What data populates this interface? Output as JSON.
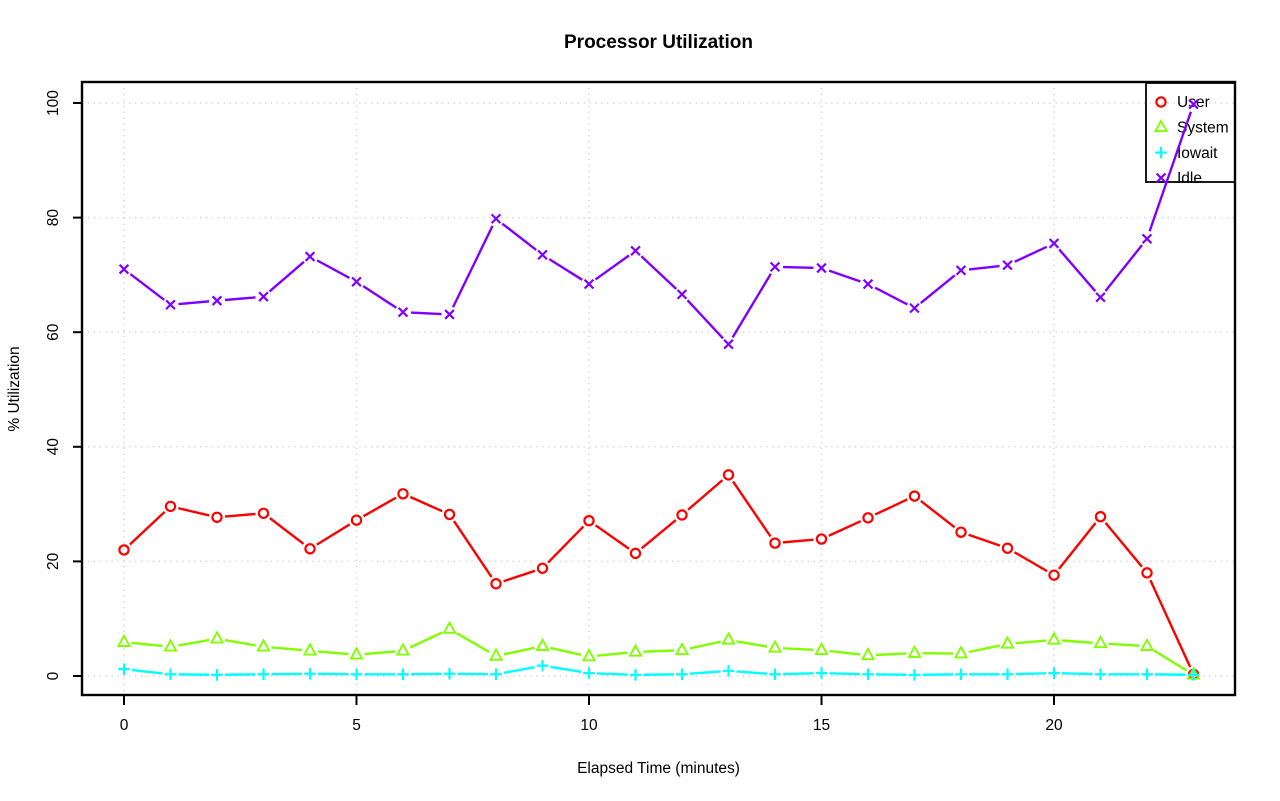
{
  "chart_data": {
    "type": "line",
    "title": "Processor Utilization",
    "xlabel": "Elapsed Time (minutes)",
    "ylabel": "% Utilization",
    "xlim": [
      0,
      23
    ],
    "ylim": [
      0,
      100
    ],
    "x_ticks": [
      0,
      5,
      10,
      15,
      20
    ],
    "y_ticks": [
      0,
      20,
      40,
      60,
      80,
      100
    ],
    "grid": true,
    "grid_style": "dotted",
    "grid_color": "#d4d4d4",
    "axis_color": "#000000",
    "legend_position": "top-right",
    "x": [
      0,
      1,
      2,
      3,
      4,
      5,
      6,
      7,
      8,
      9,
      10,
      11,
      12,
      13,
      14,
      15,
      16,
      17,
      18,
      19,
      20,
      21,
      22,
      23
    ],
    "series": [
      {
        "name": "User",
        "marker": "circle",
        "color": "#FF0000",
        "values": [
          22,
          29.6,
          27.7,
          28.4,
          22.2,
          27.2,
          31.8,
          28.2,
          16.1,
          18.8,
          27.1,
          21.4,
          28.1,
          35.1,
          23.2,
          23.9,
          27.6,
          31.4,
          25.1,
          22.3,
          17.6,
          27.8,
          18,
          0.3
        ]
      },
      {
        "name": "System",
        "marker": "triangle",
        "color": "#80FF00",
        "values": [
          5.9,
          5.1,
          6.5,
          5.1,
          4.4,
          3.7,
          4.4,
          8.2,
          3.5,
          5.2,
          3.4,
          4.2,
          4.5,
          6.3,
          4.9,
          4.5,
          3.6,
          4,
          3.9,
          5.6,
          6.3,
          5.7,
          5.2,
          0.2
        ]
      },
      {
        "name": "Iowait",
        "marker": "plus",
        "color": "#00FFFF",
        "values": [
          1.2,
          0.3,
          0.2,
          0.3,
          0.4,
          0.3,
          0.3,
          0.4,
          0.3,
          1.8,
          0.5,
          0.2,
          0.3,
          0.9,
          0.3,
          0.5,
          0.3,
          0.2,
          0.3,
          0.3,
          0.5,
          0.3,
          0.3,
          0.2
        ]
      },
      {
        "name": "Idle",
        "marker": "x",
        "color": "#8000FF",
        "values": [
          71,
          64.8,
          65.5,
          66.2,
          73.2,
          68.8,
          63.5,
          63.1,
          79.8,
          73.5,
          68.4,
          74.2,
          66.6,
          57.9,
          71.4,
          71.2,
          68.4,
          64.2,
          70.8,
          71.7,
          75.5,
          66.1,
          76.3,
          99.8
        ]
      }
    ]
  }
}
